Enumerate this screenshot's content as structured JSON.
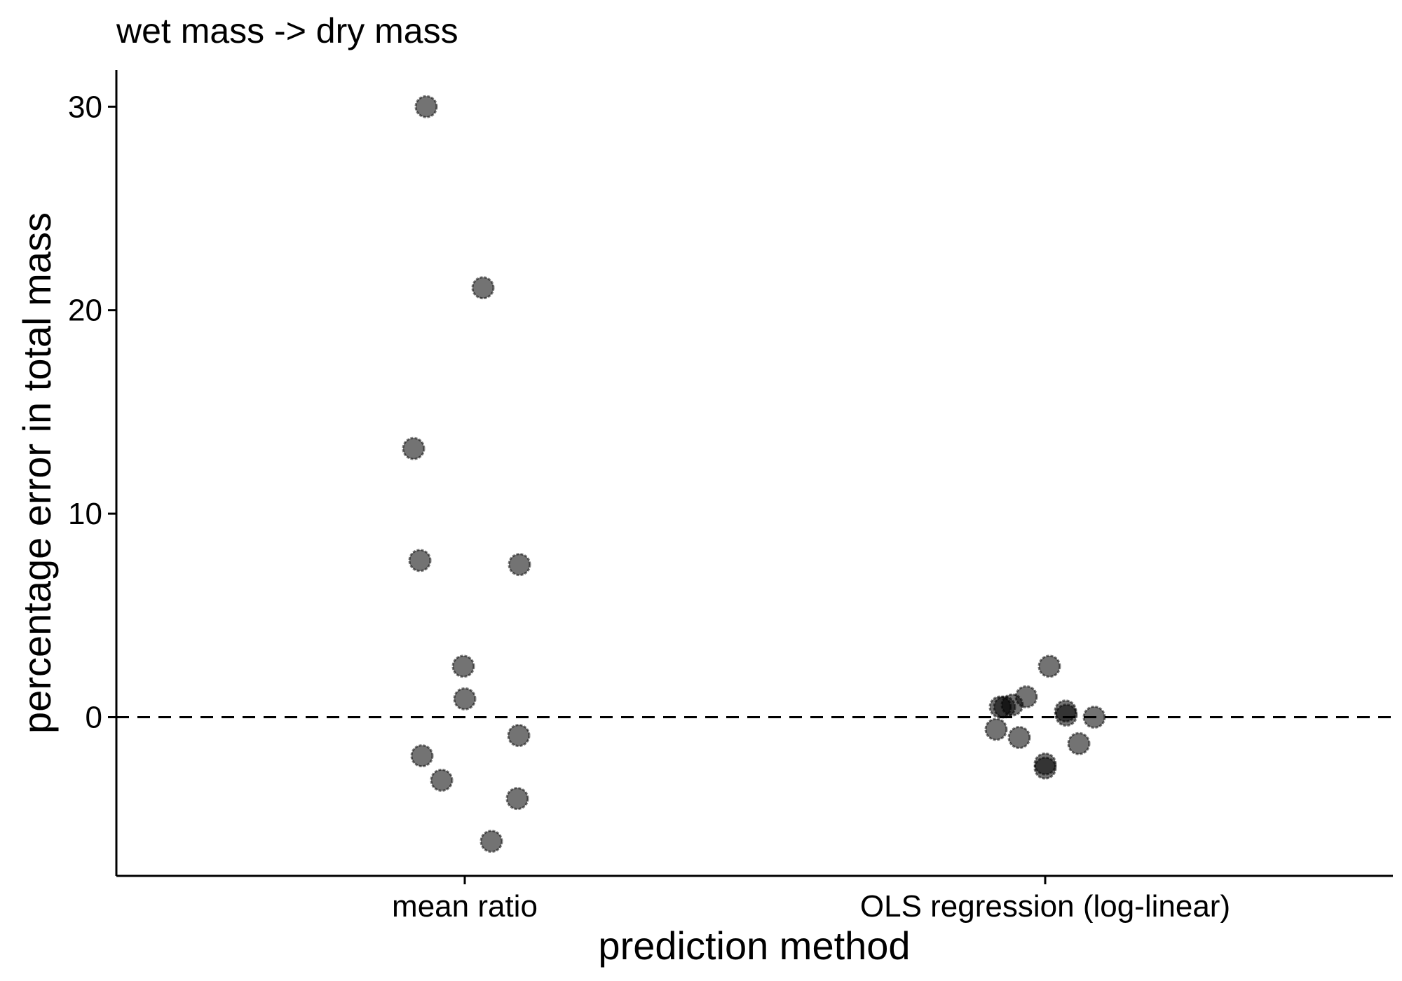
{
  "chart_data": {
    "type": "scatter",
    "title": "wet mass -> dry mass",
    "xlabel": "prediction method",
    "ylabel": "percentage error in total mass",
    "categories": [
      "mean ratio",
      "OLS regression (log-linear)"
    ],
    "ylim": [
      -7.8,
      31.8
    ],
    "yticks": [
      0,
      10,
      20,
      30
    ],
    "reference_line": {
      "y": 0,
      "style": "dashed"
    },
    "grid": false,
    "point_color": "#000000",
    "point_opacity": 0.55,
    "series": [
      {
        "category": "mean ratio",
        "values": [
          30.0,
          21.1,
          13.2,
          7.7,
          7.5,
          2.5,
          0.9,
          -0.9,
          -1.9,
          -3.1,
          -4.0,
          -6.1
        ]
      },
      {
        "category": "OLS regression (log-linear)",
        "values": [
          2.5,
          1.0,
          0.6,
          0.5,
          0.5,
          0.3,
          0.1,
          0.0,
          -0.6,
          -1.0,
          -1.3,
          -2.3,
          -2.5
        ]
      }
    ]
  }
}
